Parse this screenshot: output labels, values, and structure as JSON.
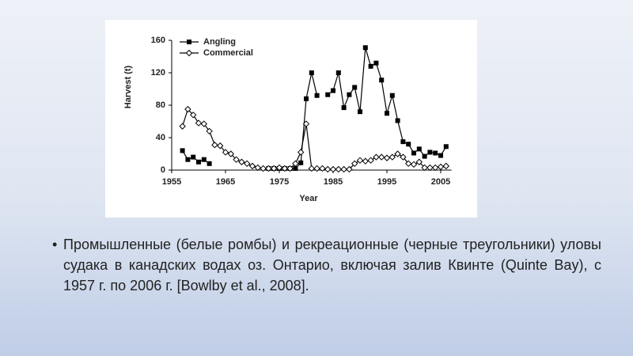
{
  "chart_data": {
    "type": "line",
    "x_label": "Year",
    "y_label": "Harvest (t)",
    "x": [
      1957,
      1958,
      1959,
      1960,
      1961,
      1962,
      1963,
      1964,
      1965,
      1966,
      1967,
      1968,
      1969,
      1970,
      1971,
      1972,
      1973,
      1974,
      1975,
      1976,
      1977,
      1978,
      1979,
      1980,
      1981,
      1982,
      1983,
      1984,
      1985,
      1986,
      1987,
      1988,
      1989,
      1990,
      1991,
      1992,
      1993,
      1994,
      1995,
      1996,
      1997,
      1998,
      1999,
      2000,
      2001,
      2002,
      2003,
      2004,
      2005,
      2006
    ],
    "series": [
      {
        "name": "Angling",
        "color": "#000000",
        "marker": "square",
        "values": [
          24,
          13,
          16,
          10,
          13,
          8,
          null,
          null,
          null,
          null,
          null,
          null,
          null,
          null,
          null,
          null,
          2,
          2,
          2,
          2,
          2,
          2,
          9,
          88,
          120,
          92,
          null,
          93,
          98,
          120,
          77,
          93,
          102,
          72,
          151,
          128,
          132,
          111,
          70,
          92,
          61,
          35,
          32,
          21,
          26,
          17,
          22,
          21,
          18,
          29
        ]
      },
      {
        "name": "Commercial",
        "color": "#000000",
        "marker": "diamond",
        "values": [
          54,
          75,
          68,
          58,
          57,
          48,
          31,
          30,
          22,
          20,
          13,
          10,
          8,
          5,
          3,
          2,
          2,
          2,
          3,
          2,
          2,
          8,
          22,
          57,
          2,
          2,
          2,
          1,
          1,
          1,
          1,
          1,
          8,
          12,
          11,
          12,
          16,
          16,
          15,
          16,
          20,
          16,
          8,
          7,
          10,
          3,
          3,
          3,
          4,
          5
        ]
      }
    ],
    "xlim": [
      1955,
      2007
    ],
    "ylim": [
      0,
      160
    ],
    "xticks": [
      1955,
      1965,
      1975,
      1985,
      1995,
      2005
    ],
    "yticks": [
      0,
      40,
      80,
      120,
      160
    ],
    "legend": "upper left"
  },
  "caption": "Промышленные (белые ромбы) и рекреационные (черные треугольники) уловы судака в канадских водах оз. Онтарио, включая залив Квинте (Quinte Bay), с 1957 г. по 2006 г. [Bowlby et al., 2008]."
}
